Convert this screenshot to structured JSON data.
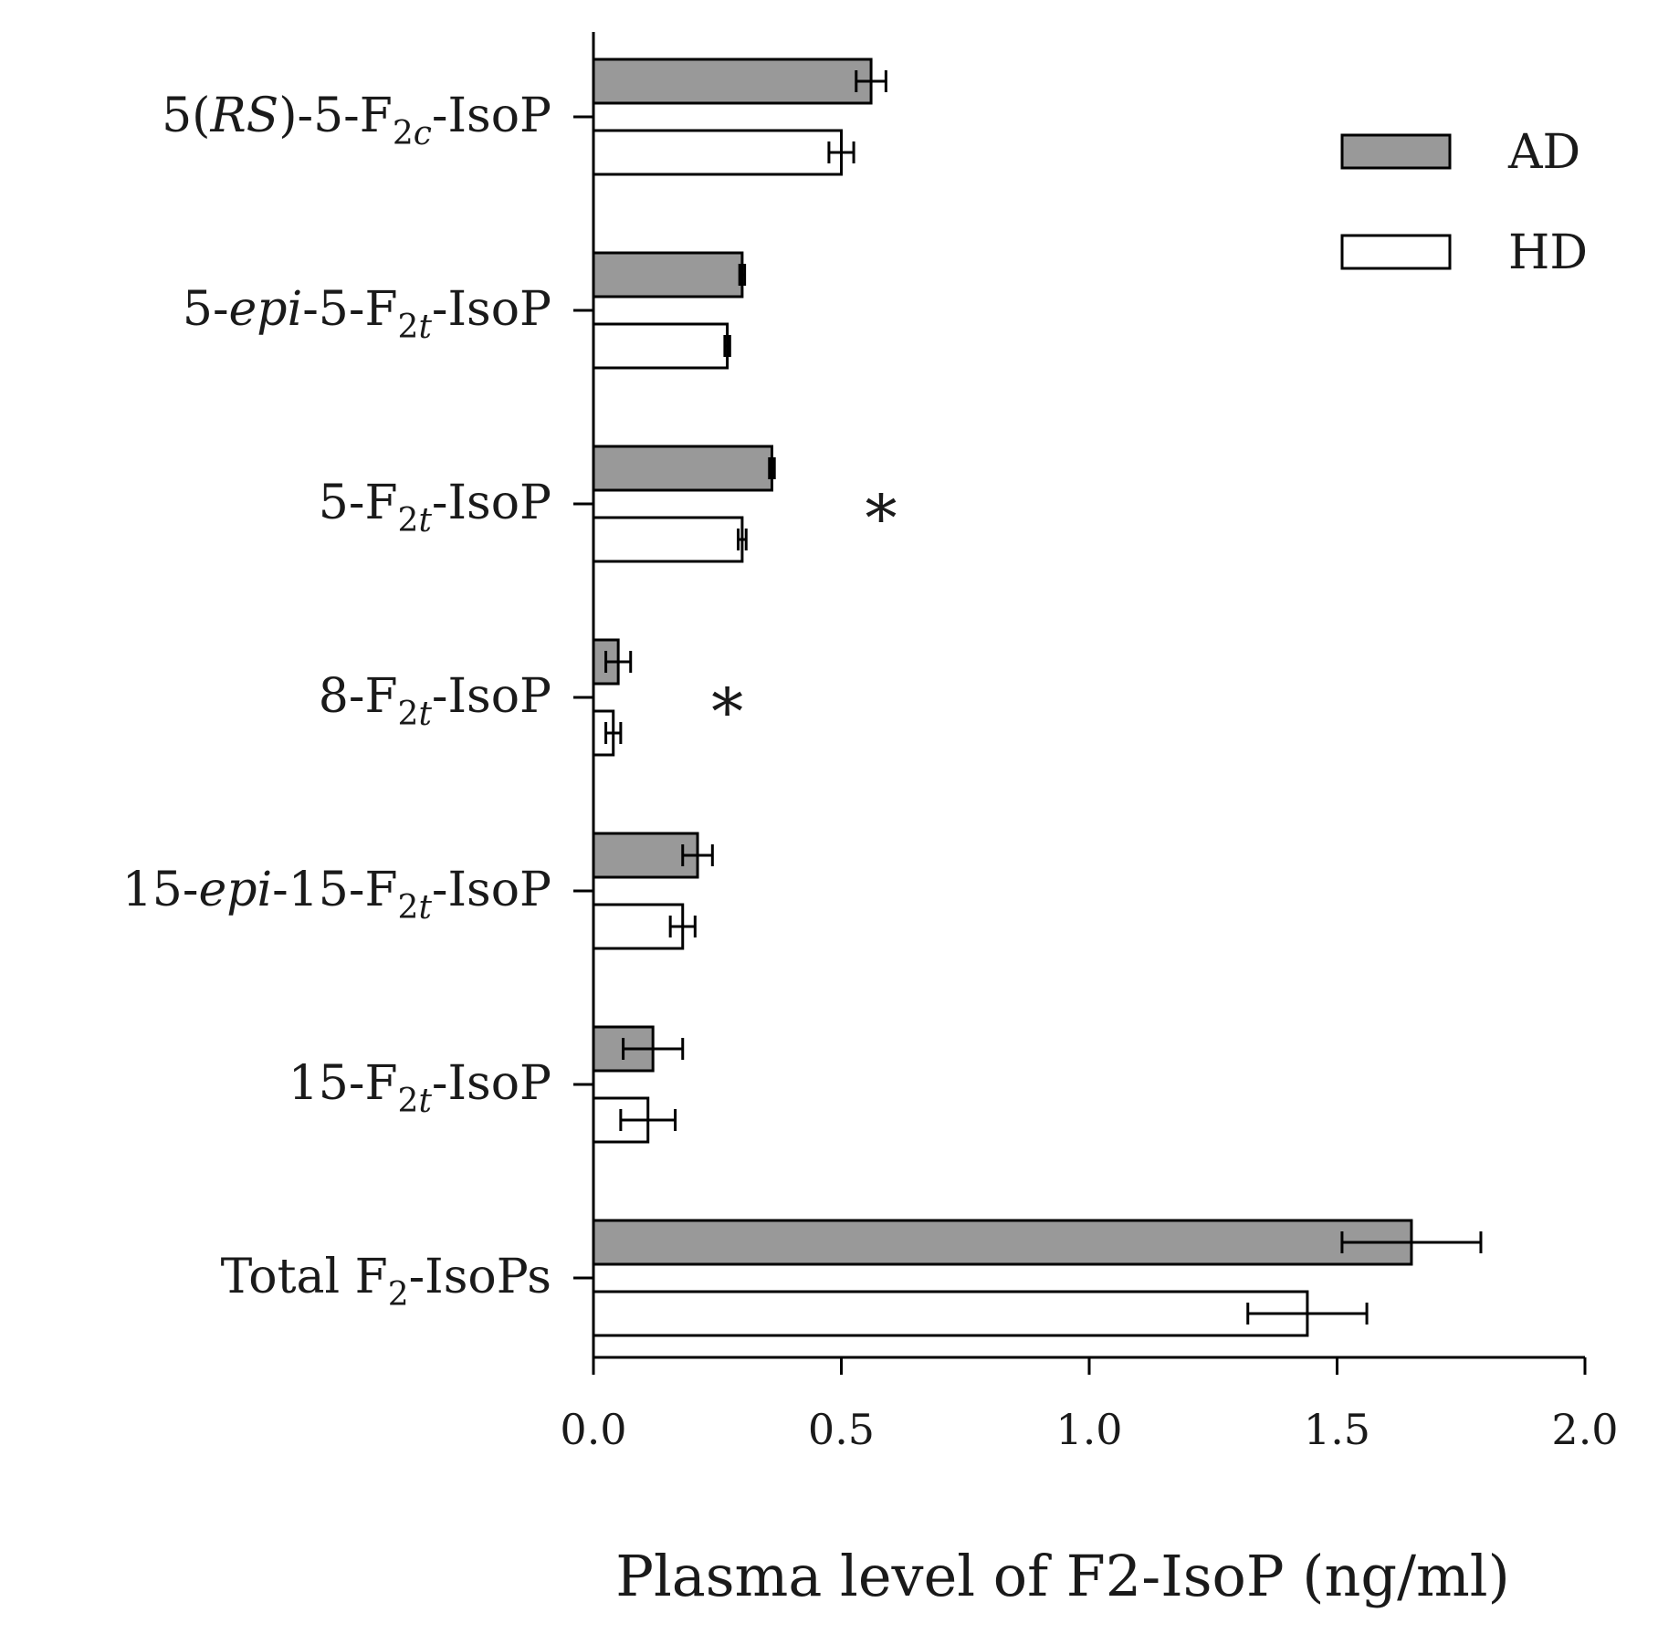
{
  "chart_data": {
    "type": "bar",
    "orientation": "horizontal",
    "xlabel": "Plasma level of F2-IsoP (ng/ml)",
    "ylabel": "",
    "xlim": [
      0,
      2.0
    ],
    "ticks": [
      "0.0",
      "0.5",
      "1.0",
      "1.5",
      "2.0"
    ],
    "tick_values": [
      0,
      0.5,
      1.0,
      1.5,
      2.0
    ],
    "grid": false,
    "legend_position": "top-right",
    "categories": [
      {
        "key": "rs5f2c",
        "parts": [
          {
            "t": "5("
          },
          {
            "t": "RS",
            "i": true
          },
          {
            "t": ")-5-F"
          },
          {
            "t": "2",
            "sub": true
          },
          {
            "t": "c",
            "sub": true,
            "i": true
          },
          {
            "t": "-IsoP"
          }
        ]
      },
      {
        "key": "epi5f2t",
        "parts": [
          {
            "t": "5-"
          },
          {
            "t": "epi",
            "i": true
          },
          {
            "t": "-5-F"
          },
          {
            "t": "2",
            "sub": true
          },
          {
            "t": "t",
            "sub": true,
            "i": true
          },
          {
            "t": "-IsoP"
          }
        ]
      },
      {
        "key": "5f2t",
        "parts": [
          {
            "t": "5-F"
          },
          {
            "t": "2",
            "sub": true
          },
          {
            "t": "t",
            "sub": true,
            "i": true
          },
          {
            "t": "-IsoP"
          }
        ]
      },
      {
        "key": "8f2t",
        "parts": [
          {
            "t": "8-F"
          },
          {
            "t": "2",
            "sub": true
          },
          {
            "t": "t",
            "sub": true,
            "i": true
          },
          {
            "t": "-IsoP"
          }
        ]
      },
      {
        "key": "epi15f2t",
        "parts": [
          {
            "t": "15-"
          },
          {
            "t": "epi",
            "i": true
          },
          {
            "t": "-15-F"
          },
          {
            "t": "2",
            "sub": true
          },
          {
            "t": "t",
            "sub": true,
            "i": true
          },
          {
            "t": "-IsoP"
          }
        ]
      },
      {
        "key": "15f2t",
        "parts": [
          {
            "t": "15-F"
          },
          {
            "t": "2",
            "sub": true
          },
          {
            "t": "t",
            "sub": true,
            "i": true
          },
          {
            "t": "-IsoP"
          }
        ]
      },
      {
        "key": "total",
        "parts": [
          {
            "t": "Total F"
          },
          {
            "t": "2",
            "sub": true
          },
          {
            "t": "-IsoPs"
          }
        ]
      }
    ],
    "series": [
      {
        "name": "AD",
        "color": "#999999",
        "values": [
          0.56,
          0.3,
          0.36,
          0.05,
          0.21,
          0.12,
          1.65
        ],
        "errors": [
          0.03,
          0.005,
          0.005,
          0.025,
          0.03,
          0.06,
          0.14
        ]
      },
      {
        "name": "HD",
        "color": "#ffffff",
        "values": [
          0.5,
          0.27,
          0.3,
          0.04,
          0.18,
          0.11,
          1.44
        ],
        "errors": [
          0.025,
          0.005,
          0.008,
          0.015,
          0.025,
          0.055,
          0.12
        ]
      }
    ],
    "annotations": [
      {
        "category_index": 2,
        "x": 0.58,
        "text": "*"
      },
      {
        "category_index": 3,
        "x": 0.27,
        "text": "*"
      }
    ]
  }
}
